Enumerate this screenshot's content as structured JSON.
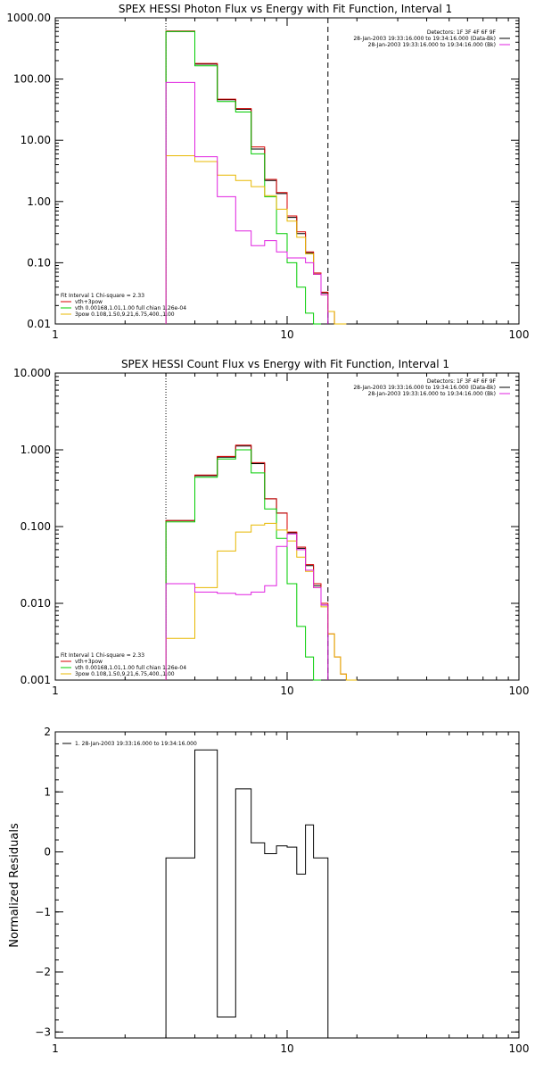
{
  "chart_data": [
    {
      "type": "line",
      "title": "SPEX HESSI Photon Flux vs Energy with Fit Function, Interval 1",
      "xscale": "log",
      "yscale": "log",
      "xlim": [
        1,
        100
      ],
      "ylim": [
        0.01,
        1000
      ],
      "xticks": [
        1,
        10,
        100
      ],
      "xtick_labels": [
        "1",
        "10",
        "100"
      ],
      "yticks": [
        0.01,
        0.1,
        1,
        10,
        100,
        1000
      ],
      "ytick_labels": [
        "0.01",
        "0.10",
        "1.00",
        "10.00",
        "100.00",
        "1000.00"
      ],
      "vlines": [
        {
          "x": 3.0,
          "style": "dotted"
        },
        {
          "x": 15.0,
          "style": "dashed"
        }
      ],
      "info_legend": {
        "position": "top-right",
        "lines": [
          {
            "text": "Detectors: 1F 3F 4F 6F 9F",
            "color": ""
          },
          {
            "text": "28-Jan-2003 19:33:16.000 to 19:34:16.000 (Data-Bk)",
            "color": "#000000"
          },
          {
            "text": "28-Jan-2003 19:33:16.000 to 19:34:16.000 (Bk)",
            "color": "#e020e0"
          }
        ]
      },
      "fit_legend": {
        "position": "bottom-left",
        "header": "Fit Interval 1    Chi-square = 2.33",
        "lines": [
          {
            "text": "vth+3pow",
            "color": "#d80000"
          },
          {
            "text": "vth 0.00168,1.01,1.00  full chian 1.26e-04",
            "color": "#00cc00"
          },
          {
            "text": "3pow 0.108,1.50,9.21,6.75,400.,1.00",
            "color": "#e8b800"
          }
        ]
      },
      "edges": [
        3,
        4,
        5,
        6,
        7,
        8,
        9,
        10,
        11,
        12,
        13,
        14,
        15,
        16,
        17,
        18
      ],
      "series": [
        {
          "key": "data",
          "color": "#000000",
          "values": [
            600,
            175,
            46,
            32,
            7.2,
            2.2,
            1.35,
            0.55,
            0.3,
            0.145,
            0.065,
            0.032
          ]
        },
        {
          "key": "vth3pow",
          "color": "#d80000",
          "values": [
            610,
            180,
            47,
            33,
            7.8,
            2.3,
            1.4,
            0.58,
            0.32,
            0.15,
            0.068,
            0.033,
            0.016,
            0.01,
            0.006
          ]
        },
        {
          "key": "vth",
          "color": "#00cc00",
          "values": [
            600,
            165,
            43,
            29,
            6.0,
            1.2,
            0.3,
            0.1,
            0.04,
            0.015,
            0.005
          ]
        },
        {
          "key": "pow3",
          "color": "#e8b800",
          "values": [
            5.6,
            4.5,
            2.7,
            2.2,
            1.75,
            1.25,
            0.75,
            0.48,
            0.26,
            0.14,
            0.065,
            0.03,
            0.016,
            0.01,
            0.006
          ]
        },
        {
          "key": "bk",
          "color": "#e020e0",
          "values": [
            88,
            5.4,
            1.2,
            0.33,
            0.19,
            0.23,
            0.15,
            0.12,
            0.12,
            0.1,
            0.065,
            0.03
          ]
        }
      ]
    },
    {
      "type": "line",
      "title": "SPEX HESSI Count Flux vs Energy with Fit Function, Interval 1",
      "xscale": "log",
      "yscale": "log",
      "xlim": [
        1,
        100
      ],
      "ylim": [
        0.001,
        10
      ],
      "xticks": [
        1,
        10,
        100
      ],
      "xtick_labels": [
        "1",
        "10",
        "100"
      ],
      "yticks": [
        0.001,
        0.01,
        0.1,
        1,
        10
      ],
      "ytick_labels": [
        "0.001",
        "0.010",
        "0.100",
        "1.000",
        "10.000"
      ],
      "vlines": [
        {
          "x": 3.0,
          "style": "dotted"
        },
        {
          "x": 15.0,
          "style": "dashed"
        }
      ],
      "info_legend": {
        "position": "top-right",
        "lines": [
          {
            "text": "Detectors: 1F 3F 4F 6F 9F",
            "color": ""
          },
          {
            "text": "28-Jan-2003 19:33:16.000 to 19:34:16.000 (Data-Bk)",
            "color": "#000000"
          },
          {
            "text": "28-Jan-2003 19:33:16.000 to 19:34:16.000 (Bk)",
            "color": "#e020e0"
          }
        ]
      },
      "fit_legend": {
        "position": "bottom-left",
        "header": "Fit Interval 1    Chi-square = 2.33",
        "lines": [
          {
            "text": "vth+3pow",
            "color": "#d80000"
          },
          {
            "text": "vth 0.00168,1.01,1.00  full chian 1.26e-04",
            "color": "#00cc00"
          },
          {
            "text": "3pow 0.108,1.50,9.21,6.75,400.,1.00",
            "color": "#e8b800"
          }
        ]
      },
      "edges": [
        3,
        4,
        5,
        6,
        7,
        8,
        9,
        10,
        11,
        12,
        13,
        14,
        15,
        16,
        17,
        18,
        20
      ],
      "series": [
        {
          "key": "data",
          "color": "#000000",
          "values": [
            0.12,
            0.46,
            0.8,
            1.12,
            0.66,
            0.23,
            0.15,
            0.083,
            0.052,
            0.031,
            0.017,
            0.0095
          ]
        },
        {
          "key": "vth3pow",
          "color": "#d80000",
          "values": [
            0.12,
            0.47,
            0.82,
            1.15,
            0.68,
            0.23,
            0.15,
            0.085,
            0.054,
            0.032,
            0.018,
            0.01,
            0.004,
            0.002,
            0.0012,
            0.0008
          ]
        },
        {
          "key": "vth",
          "color": "#00cc00",
          "values": [
            0.115,
            0.44,
            0.76,
            1.0,
            0.5,
            0.17,
            0.07,
            0.018,
            0.005,
            0.002,
            0.0009
          ]
        },
        {
          "key": "pow3",
          "color": "#e8b800",
          "values": [
            0.0035,
            0.016,
            0.048,
            0.085,
            0.105,
            0.11,
            0.09,
            0.065,
            0.04,
            0.026,
            0.016,
            0.009,
            0.004,
            0.002,
            0.0012,
            0.0008
          ]
        },
        {
          "key": "bk",
          "color": "#e020e0",
          "values": [
            0.018,
            0.014,
            0.0135,
            0.013,
            0.014,
            0.017,
            0.055,
            0.08,
            0.05,
            0.027,
            0.016,
            0.0095
          ]
        }
      ]
    },
    {
      "type": "line",
      "title": "",
      "ylabel": "Normalized Residuals",
      "xscale": "log",
      "yscale": "linear",
      "xlim": [
        1,
        100
      ],
      "ylim": [
        -3.1,
        2
      ],
      "xticks": [
        1,
        10,
        100
      ],
      "xtick_labels": [
        "1",
        "10",
        "100"
      ],
      "yticks": [
        -3,
        -2,
        -1,
        0,
        1,
        2
      ],
      "ytick_labels": [
        "−3",
        "−2",
        "−1",
        "0",
        "1",
        "2"
      ],
      "legend": {
        "position": "top-left",
        "lines": [
          {
            "text": "1. 28-Jan-2003 19:33:16.000 to 19:34:16.000",
            "color": "#000000"
          }
        ]
      },
      "edges": [
        3,
        4,
        5,
        6,
        7,
        8,
        9,
        10,
        11,
        12,
        13,
        14,
        15
      ],
      "series": [
        {
          "key": "residuals",
          "color": "#000000",
          "values": [
            -0.1,
            1.7,
            -2.75,
            1.05,
            0.15,
            -0.03,
            0.1,
            0.08,
            -0.37,
            0.45,
            -0.1,
            -0.1
          ]
        }
      ]
    }
  ]
}
